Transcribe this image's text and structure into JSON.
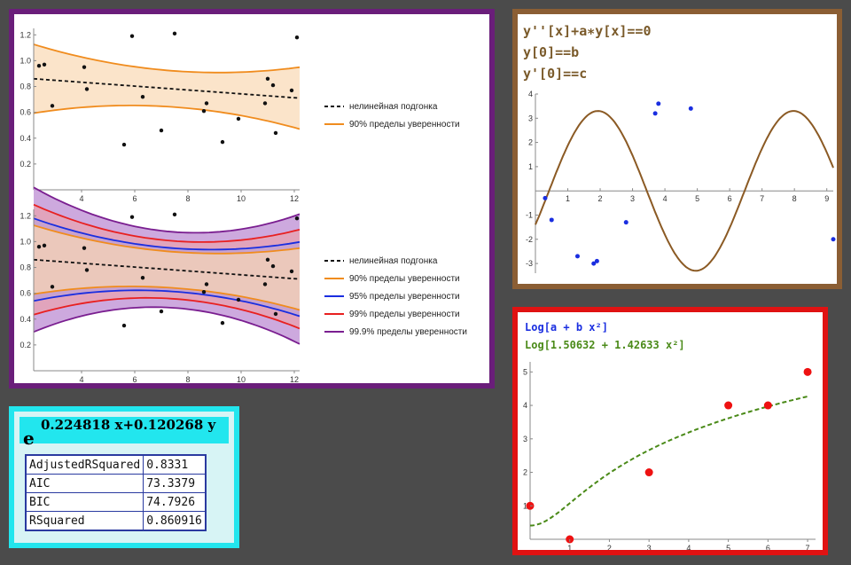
{
  "chart_data": [
    {
      "type": "scatter",
      "title": "",
      "xlim": [
        2.2,
        12.2
      ],
      "ylim": [
        0,
        1.25
      ],
      "xticks": [
        "4",
        "6",
        "8",
        "10",
        "12"
      ],
      "yticks": [
        "0.2",
        "0.4",
        "0.6",
        "0.8",
        "1.0",
        "1.2"
      ],
      "points": [
        [
          2.4,
          0.96
        ],
        [
          2.6,
          0.97
        ],
        [
          2.9,
          0.65
        ],
        [
          4.1,
          0.95
        ],
        [
          4.2,
          0.78
        ],
        [
          5.6,
          0.35
        ],
        [
          5.9,
          1.19
        ],
        [
          6.3,
          0.72
        ],
        [
          7.0,
          0.46
        ],
        [
          7.5,
          1.21
        ],
        [
          8.6,
          0.61
        ],
        [
          8.7,
          0.67
        ],
        [
          9.3,
          0.37
        ],
        [
          9.9,
          0.55
        ],
        [
          10.9,
          0.67
        ],
        [
          11.0,
          0.86
        ],
        [
          11.2,
          0.81
        ],
        [
          11.3,
          0.44
        ],
        [
          11.9,
          0.77
        ],
        [
          12.1,
          1.18
        ]
      ],
      "series": [
        {
          "name": "нелинейная подгонка",
          "color": "#111111",
          "style": "dashed"
        },
        {
          "name": "90% пределы уверенности",
          "color": "#f08c1e"
        }
      ]
    },
    {
      "type": "scatter",
      "title": "",
      "xlim": [
        2.2,
        12.2
      ],
      "ylim": [
        0,
        1.25
      ],
      "xticks": [
        "4",
        "6",
        "8",
        "10",
        "12"
      ],
      "yticks": [
        "0.2",
        "0.4",
        "0.6",
        "0.8",
        "1.0",
        "1.2"
      ],
      "points": [
        [
          2.4,
          0.96
        ],
        [
          2.6,
          0.97
        ],
        [
          2.9,
          0.65
        ],
        [
          4.1,
          0.95
        ],
        [
          4.2,
          0.78
        ],
        [
          5.6,
          0.35
        ],
        [
          5.9,
          1.19
        ],
        [
          6.3,
          0.72
        ],
        [
          7.0,
          0.46
        ],
        [
          7.5,
          1.21
        ],
        [
          8.6,
          0.61
        ],
        [
          8.7,
          0.67
        ],
        [
          9.3,
          0.37
        ],
        [
          9.9,
          0.55
        ],
        [
          10.9,
          0.67
        ],
        [
          11.0,
          0.86
        ],
        [
          11.2,
          0.81
        ],
        [
          11.3,
          0.44
        ],
        [
          11.9,
          0.77
        ],
        [
          12.1,
          1.18
        ]
      ],
      "series": [
        {
          "name": "нелинейная подгонка",
          "color": "#111111",
          "style": "dashed"
        },
        {
          "name": "90% пределы уверенности",
          "color": "#f08c1e"
        },
        {
          "name": "95% пределы уверенности",
          "color": "#1a2ee0"
        },
        {
          "name": "99% пределы уверенности",
          "color": "#e82020"
        },
        {
          "name": "99.9% пределы уверенности",
          "color": "#7a1e90"
        }
      ]
    },
    {
      "type": "line",
      "title": "",
      "xlim": [
        0,
        9.2
      ],
      "ylim": [
        -3.4,
        4
      ],
      "xticks": [
        "1",
        "2",
        "3",
        "4",
        "5",
        "6",
        "7",
        "8",
        "9"
      ],
      "yticks": [
        "-3",
        "-2",
        "-1",
        "1",
        "2",
        "3",
        "4"
      ],
      "points": [
        [
          0.3,
          -0.3
        ],
        [
          0.5,
          -1.2
        ],
        [
          1.3,
          -2.7
        ],
        [
          1.8,
          -3.0
        ],
        [
          1.9,
          -2.9
        ],
        [
          2.8,
          -1.3
        ],
        [
          3.7,
          3.2
        ],
        [
          3.8,
          3.6
        ],
        [
          4.8,
          3.4
        ],
        [
          9.2,
          -2.0
        ]
      ],
      "curve_color": "#8b5a24",
      "point_color": "#1a2ee0"
    },
    {
      "type": "scatter",
      "title": "",
      "xlim": [
        0,
        7.2
      ],
      "ylim": [
        0,
        5.3
      ],
      "xticks": [
        "1",
        "2",
        "3",
        "4",
        "5",
        "6",
        "7"
      ],
      "yticks": [
        "1",
        "2",
        "3",
        "4",
        "5"
      ],
      "points": [
        [
          0,
          1
        ],
        [
          1,
          0
        ],
        [
          3,
          2
        ],
        [
          5,
          4
        ],
        [
          6,
          4
        ],
        [
          7,
          5
        ]
      ],
      "curve_color": "#4a8a18",
      "point_color": "#ee1111"
    }
  ],
  "panel2": {
    "code_lines": [
      "y''[x]+a∗y[x]==0",
      "y[0]==b",
      "y'[0]==c"
    ]
  },
  "panel3": {
    "model_prefix": "Log",
    "model_inner": "a + b x²",
    "fit_prefix": "Log",
    "fit_inner": "1.50632 + 1.42633 x²"
  },
  "panel4": {
    "exp_base": "e",
    "exp_sup": "0.224818 x+0.120268 y",
    "stats": [
      {
        "name": "AdjustedRSquared",
        "value": "0.8331"
      },
      {
        "name": "AIC",
        "value": "73.3379"
      },
      {
        "name": "BIC",
        "value": "74.7926"
      },
      {
        "name": "RSquared",
        "value": "0.860916"
      }
    ]
  }
}
